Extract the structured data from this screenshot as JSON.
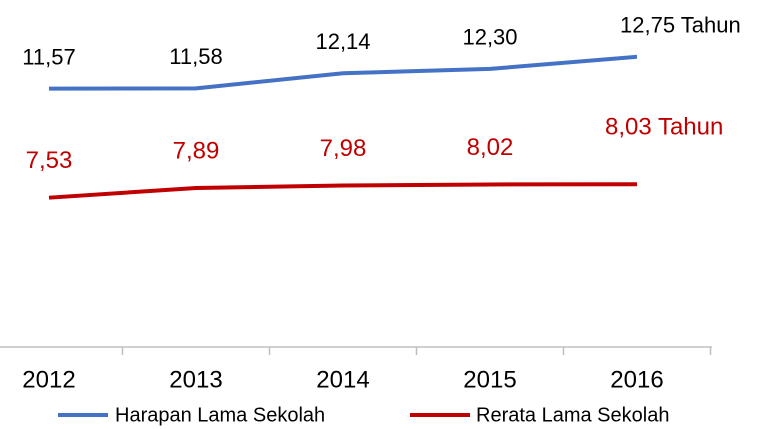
{
  "chart_data": {
    "type": "line",
    "categories": [
      "2012",
      "2013",
      "2014",
      "2015",
      "2016"
    ],
    "series": [
      {
        "name": "Harapan Lama Sekolah",
        "color": "#4472c4",
        "values": [
          11.57,
          11.58,
          12.14,
          12.3,
          12.75
        ],
        "value_labels": [
          "11,57",
          "11,58",
          "12,14",
          "12,30",
          "12,75 Tahun"
        ]
      },
      {
        "name": "Rerata Lama Sekolah",
        "color": "#c00000",
        "values": [
          7.53,
          7.89,
          7.98,
          8.02,
          8.03
        ],
        "value_labels": [
          "7,53",
          "7,89",
          "7,98",
          "8,02",
          "8,03 Tahun"
        ]
      }
    ],
    "ylim": [
      2,
      14
    ]
  }
}
